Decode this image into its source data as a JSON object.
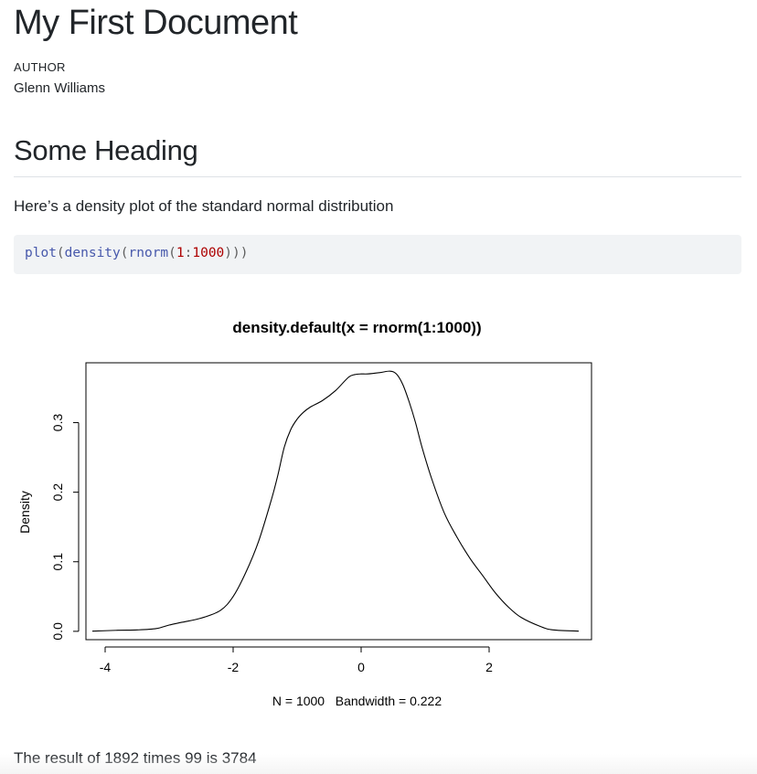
{
  "document": {
    "title": "My First Document",
    "author_label": "AUTHOR",
    "author_name": "Glenn Williams"
  },
  "section": {
    "heading": "Some Heading",
    "paragraph": "Here’s a density plot of the standard normal distribution"
  },
  "code": {
    "tokens": [
      {
        "text": "plot",
        "kind": "fn"
      },
      {
        "text": "(",
        "kind": "punc"
      },
      {
        "text": "density",
        "kind": "fn"
      },
      {
        "text": "(",
        "kind": "punc"
      },
      {
        "text": "rnorm",
        "kind": "fn"
      },
      {
        "text": "(",
        "kind": "punc"
      },
      {
        "text": "1",
        "kind": "num"
      },
      {
        "text": ":",
        "kind": "punc"
      },
      {
        "text": "1000",
        "kind": "num"
      },
      {
        "text": ")))",
        "kind": "punc"
      }
    ]
  },
  "chart_data": {
    "type": "line",
    "title": "density.default(x = rnorm(1:1000))",
    "xlabel": "N = 1000   Bandwidth = 0.222",
    "ylabel": "Density",
    "xlim": [
      -4.3,
      3.6
    ],
    "ylim": [
      -0.012,
      0.386
    ],
    "xticks": [
      -4,
      -2,
      0,
      2
    ],
    "xtick_labels": [
      "-4",
      "-2",
      "0",
      "2"
    ],
    "yticks": [
      0.0,
      0.1,
      0.2,
      0.3
    ],
    "ytick_labels": [
      "0.0",
      "0.1",
      "0.2",
      "0.3"
    ],
    "grid": false,
    "legend": "none",
    "series": [
      {
        "x": [
          -4.2,
          -3.8,
          -3.5,
          -3.2,
          -3.0,
          -2.8,
          -2.5,
          -2.2,
          -2.0,
          -1.8,
          -1.6,
          -1.4,
          -1.3,
          -1.2,
          -1.1,
          -1.0,
          -0.9,
          -0.8,
          -0.6,
          -0.4,
          -0.2,
          -0.1,
          0.0,
          0.1,
          0.3,
          0.45,
          0.55,
          0.65,
          0.75,
          0.85,
          0.95,
          1.1,
          1.3,
          1.5,
          1.7,
          1.9,
          2.1,
          2.3,
          2.5,
          2.8,
          3.0,
          3.4
        ],
        "y": [
          0.0002,
          0.0015,
          0.002,
          0.004,
          0.009,
          0.013,
          0.019,
          0.03,
          0.05,
          0.085,
          0.13,
          0.19,
          0.225,
          0.265,
          0.29,
          0.305,
          0.315,
          0.322,
          0.332,
          0.346,
          0.365,
          0.369,
          0.37,
          0.37,
          0.372,
          0.374,
          0.37,
          0.355,
          0.33,
          0.3,
          0.265,
          0.22,
          0.17,
          0.135,
          0.105,
          0.08,
          0.055,
          0.035,
          0.02,
          0.007,
          0.002,
          0.0003
        ]
      }
    ]
  },
  "result_text": "The result of 1892 times 99 is 3784"
}
